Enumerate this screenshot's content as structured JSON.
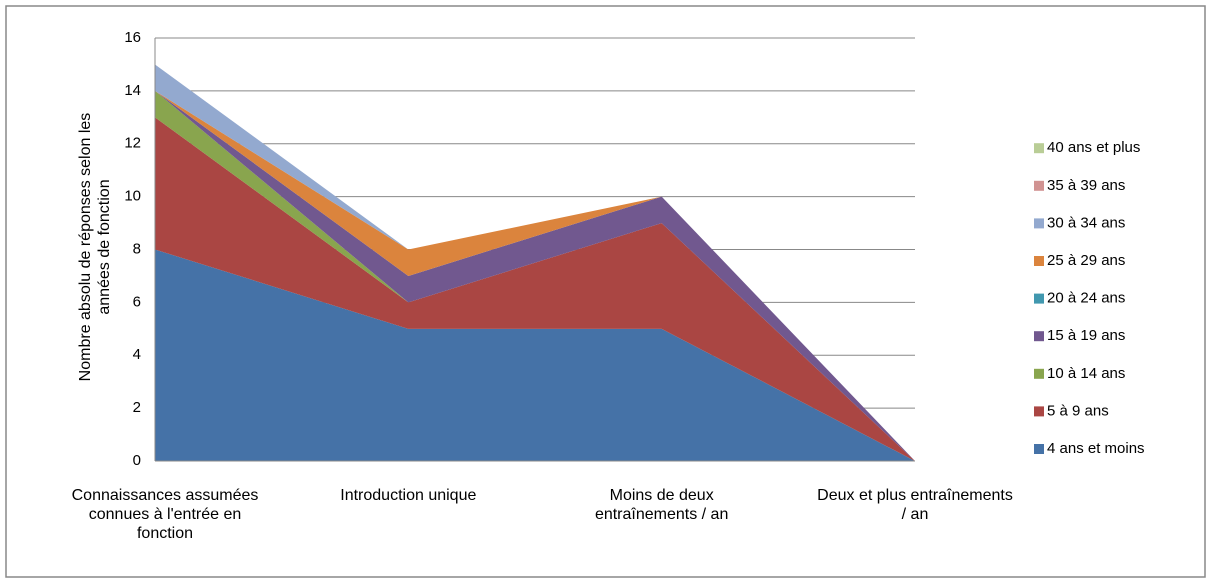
{
  "chart_data": {
    "type": "stacked_area",
    "y_label": "Nombre absolu de réponses selon les années de fonction",
    "categories": [
      "Connaissances assumées connues à l'entrée en fonction",
      "Introduction unique",
      "Moins de deux entraînements / an",
      "Deux et plus entraînements / an"
    ],
    "series": [
      {
        "name": "4 ans et moins",
        "color": "#4572a7",
        "values": [
          8,
          5,
          5,
          0
        ]
      },
      {
        "name": "5 à 9 ans",
        "color": "#aa4643",
        "values": [
          5,
          1,
          4,
          0
        ]
      },
      {
        "name": "10 à 14 ans",
        "color": "#89a54e",
        "values": [
          1,
          0,
          0,
          0
        ]
      },
      {
        "name": "15 à 19 ans",
        "color": "#71588f",
        "values": [
          0,
          1,
          1,
          0
        ]
      },
      {
        "name": "20 à 24 ans",
        "color": "#4198af",
        "values": [
          0,
          0,
          0,
          0
        ]
      },
      {
        "name": "25 à 29 ans",
        "color": "#db843d",
        "values": [
          0,
          1,
          0,
          0
        ]
      },
      {
        "name": "30 à 34 ans",
        "color": "#93a9cf",
        "values": [
          1,
          0,
          0,
          0
        ]
      },
      {
        "name": "35 à 39 ans",
        "color": "#d19392",
        "values": [
          0,
          0,
          0,
          0
        ]
      },
      {
        "name": "40 ans et plus",
        "color": "#b9cd96",
        "values": [
          0,
          0,
          0,
          0
        ]
      }
    ],
    "ylim": [
      0,
      16
    ],
    "yticks": [
      0,
      2,
      4,
      6,
      8,
      10,
      12,
      14,
      16
    ],
    "grid": true,
    "legend": "right"
  }
}
